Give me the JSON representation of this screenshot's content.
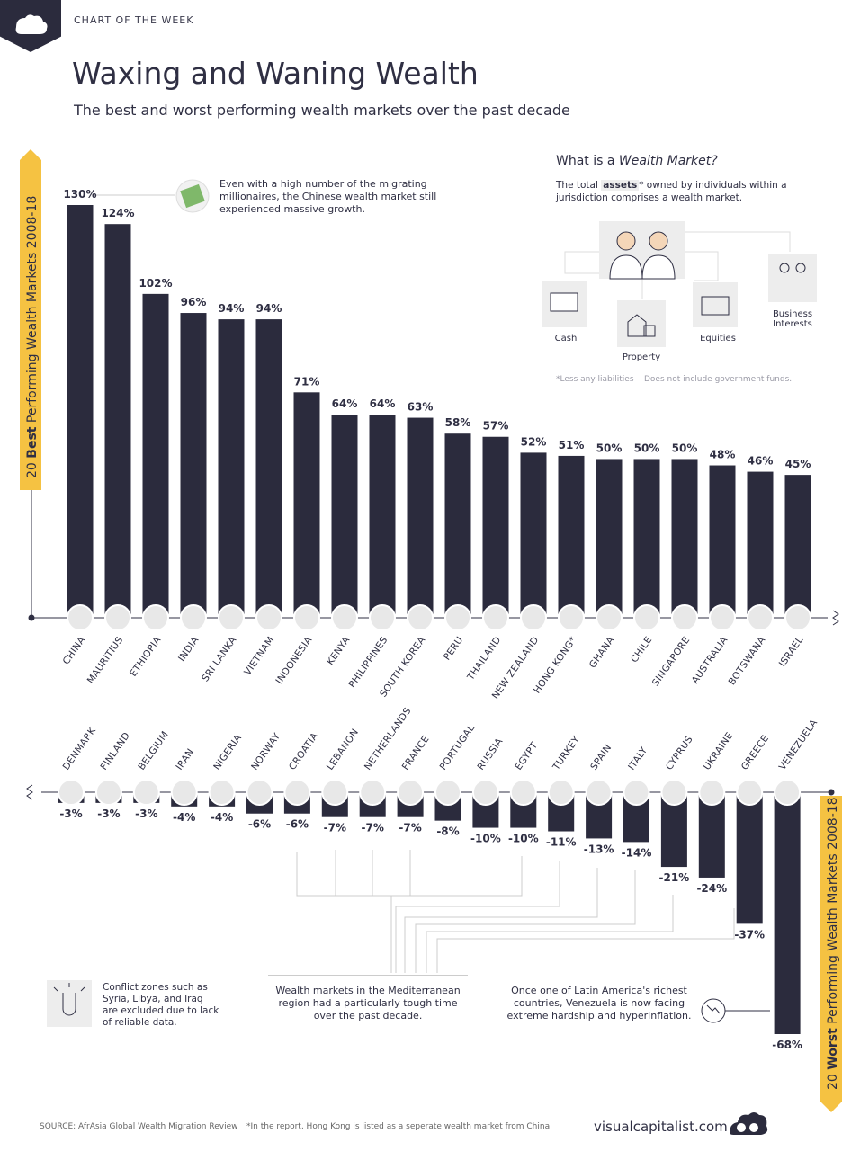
{
  "header": {
    "week_label": "CHART OF THE WEEK",
    "title": "Waxing and Waning Wealth",
    "subtitle": "The best and worst performing wealth markets over the past decade"
  },
  "chart_data": [
    {
      "type": "bar",
      "title": "20 Best Performing Wealth Markets 2008-18",
      "title_prefix": "20",
      "title_emphasis": "Best",
      "title_suffix": "Performing Wealth Markets 2008-18",
      "categories": [
        "CHINA",
        "MAURITIUS",
        "ETHIOPIA",
        "INDIA",
        "SRI LANKA",
        "VIETNAM",
        "INDONESIA",
        "KENYA",
        "PHILIPPINES",
        "SOUTH KOREA",
        "PERU",
        "THAILAND",
        "NEW ZEALAND",
        "HONG KONG*",
        "GHANA",
        "CHILE",
        "SINGAPORE",
        "AUSTRALIA",
        "BOTSWANA",
        "ISRAEL"
      ],
      "values": [
        130,
        124,
        102,
        96,
        94,
        94,
        71,
        64,
        64,
        63,
        58,
        57,
        52,
        51,
        50,
        50,
        50,
        48,
        46,
        45
      ],
      "value_labels": [
        "130%",
        "124%",
        "102%",
        "96%",
        "94%",
        "94%",
        "71%",
        "64%",
        "64%",
        "63%",
        "58%",
        "57%",
        "52%",
        "51%",
        "50%",
        "50%",
        "50%",
        "48%",
        "46%",
        "45%"
      ],
      "unit": "%"
    },
    {
      "type": "bar",
      "title": "20 Worst Performing Wealth Markets 2008-18",
      "title_prefix": "20",
      "title_emphasis": "Worst",
      "title_suffix": "Performing Wealth Markets 2008-18",
      "categories": [
        "DENMARK",
        "FINLAND",
        "BELGIUM",
        "IRAN",
        "NIGERIA",
        "NORWAY",
        "CROATIA",
        "LEBANON",
        "NETHERLANDS",
        "FRANCE",
        "PORTUGAL",
        "RUSSIA",
        "EGYPT",
        "TURKEY",
        "SPAIN",
        "ITALY",
        "CYPRUS",
        "UKRAINE",
        "GREECE",
        "VENEZUELA"
      ],
      "values": [
        -3,
        -3,
        -3,
        -4,
        -4,
        -6,
        -6,
        -7,
        -7,
        -7,
        -8,
        -10,
        -10,
        -11,
        -13,
        -14,
        -21,
        -24,
        -37,
        -68
      ],
      "value_labels": [
        "-3%",
        "-3%",
        "-3%",
        "-4%",
        "-4%",
        "-6%",
        "-6%",
        "-7%",
        "-7%",
        "-7%",
        "-8%",
        "-10%",
        "-10%",
        "-11%",
        "-13%",
        "-14%",
        "-21%",
        "-24%",
        "-37%",
        "-68%"
      ],
      "unit": "%"
    }
  ],
  "colors": {
    "bar": "#2b2b3d",
    "accent": "#f5c242",
    "line": "#cccccc"
  },
  "annotations": {
    "china_note": "Even with a high number of the migrating millionaires, the Chinese wealth market still experienced massive growth.",
    "conflict_note": "Conflict zones such as Syria, Libya, and Iraq are excluded due to lack of reliable data.",
    "mediterranean_note": "Wealth markets in the Mediterranean region had a particularly tough time over the past decade.",
    "venezuela_note": "Once one of Latin America's richest countries, Venezuela is now facing extreme hardship and hyperinflation."
  },
  "wealth_market": {
    "title_plain": "What is a",
    "title_italic": "Wealth Market?",
    "desc_pre": "The total",
    "desc_bold": "assets",
    "desc_post": "* owned by individuals within a jurisdiction comprises a wealth market.",
    "labels": {
      "cash": "Cash",
      "property": "Property",
      "equities": "Equities",
      "business": "Business Interests"
    },
    "footnote_1": "*Less any liabilities",
    "footnote_2": "Does not include government funds."
  },
  "footer": {
    "source": "SOURCE: AfrAsia Global Wealth Migration Review",
    "note": "*In the report, Hong Kong is listed as a seperate wealth market from China",
    "brand": "visualcapitalist.com"
  }
}
